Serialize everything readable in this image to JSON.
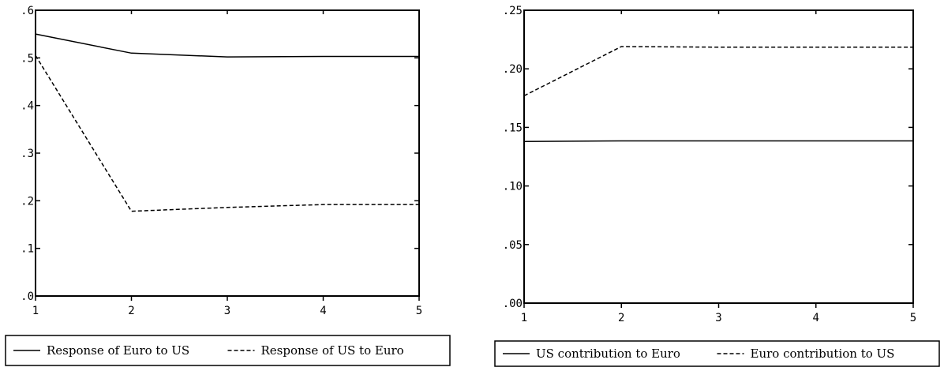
{
  "chart_data": [
    {
      "type": "line",
      "x": [
        1,
        2,
        3,
        4,
        5
      ],
      "ylim": [
        0,
        0.6
      ],
      "y_ticks": [
        ".0",
        ".1",
        ".2",
        ".3",
        ".4",
        ".5",
        ".6"
      ],
      "x_ticks": [
        "1",
        "2",
        "3",
        "4",
        "5"
      ],
      "series": [
        {
          "name": "Response of Euro to US",
          "style": "solid",
          "values": [
            0.55,
            0.51,
            0.502,
            0.503,
            0.503
          ]
        },
        {
          "name": "Response of US to Euro",
          "style": "dashed",
          "values": [
            0.505,
            0.178,
            0.186,
            0.192,
            0.192
          ]
        }
      ],
      "legend": "below",
      "grid": false
    },
    {
      "type": "line",
      "x": [
        1,
        2,
        3,
        4,
        5
      ],
      "ylim": [
        0,
        0.25
      ],
      "y_ticks": [
        ".00",
        ".05",
        ".10",
        ".15",
        ".20",
        ".25"
      ],
      "x_ticks": [
        "1",
        "2",
        "3",
        "4",
        "5"
      ],
      "series": [
        {
          "name": "US contribution to Euro",
          "style": "solid",
          "values": [
            0.138,
            0.1385,
            0.1385,
            0.1385,
            0.1385
          ]
        },
        {
          "name": "Euro contribution to US",
          "style": "dashed",
          "values": [
            0.177,
            0.219,
            0.2185,
            0.2185,
            0.2185
          ]
        }
      ],
      "legend": "below",
      "grid": false
    }
  ]
}
